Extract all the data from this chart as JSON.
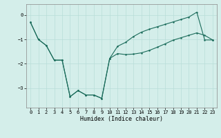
{
  "xlabel": "Humidex (Indice chaleur)",
  "background_color": "#d4eeea",
  "grid_color": "#b8ddd8",
  "line_color": "#1a6b5a",
  "xlim": [
    -0.5,
    23.5
  ],
  "ylim": [
    -3.8,
    0.45
  ],
  "yticks": [
    0,
    -1,
    -2,
    -3
  ],
  "xticks": [
    0,
    1,
    2,
    3,
    4,
    5,
    6,
    7,
    8,
    9,
    10,
    11,
    12,
    13,
    14,
    15,
    16,
    17,
    18,
    19,
    20,
    21,
    22,
    23
  ],
  "upper_x": [
    0,
    1,
    2,
    3,
    4,
    5,
    6,
    7,
    8,
    9,
    10,
    11,
    12,
    13,
    14,
    15,
    16,
    17,
    18,
    19,
    20,
    21,
    22,
    23
  ],
  "upper_y": [
    -0.3,
    -1.0,
    -1.25,
    -1.85,
    -1.85,
    -3.35,
    -3.1,
    -3.28,
    -3.28,
    -3.42,
    -1.78,
    -1.28,
    -1.12,
    -0.88,
    -0.7,
    -0.58,
    -0.48,
    -0.38,
    -0.28,
    -0.18,
    -0.08,
    0.12,
    -1.02,
    -1.02
  ],
  "lower_x": [
    0,
    1,
    2,
    3,
    4,
    5,
    6,
    7,
    8,
    9,
    10,
    11,
    12,
    13,
    14,
    15,
    16,
    17,
    18,
    19,
    20,
    21,
    22,
    23
  ],
  "lower_y": [
    -0.3,
    -1.0,
    -1.25,
    -1.85,
    -1.85,
    -3.35,
    -3.1,
    -3.28,
    -3.28,
    -3.42,
    -1.78,
    -1.58,
    -1.62,
    -1.6,
    -1.55,
    -1.45,
    -1.32,
    -1.18,
    -1.03,
    -0.93,
    -0.83,
    -0.73,
    -0.83,
    -1.02
  ]
}
